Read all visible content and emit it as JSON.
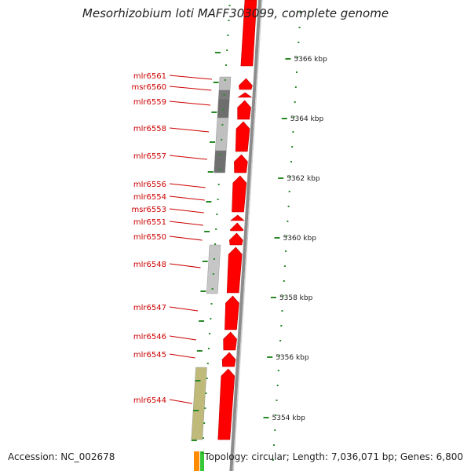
{
  "title": "Mesorhizobium loti MAFF303099, complete genome",
  "footer": {
    "accession": "Accession: NC_002678",
    "topology": "Topology: circular; Length: 7,036,071 bp; Genes: 6,800"
  },
  "colors": {
    "gene_arrow": "#ff0000",
    "label": "#cc0000",
    "tick": "#2a8a2a",
    "backbone": "#8c8c8c",
    "scale_text": "#222222"
  },
  "scale_marks": [
    {
      "label": "5366 kbp"
    },
    {
      "label": "5364 kbp"
    },
    {
      "label": "5362 kbp"
    },
    {
      "label": "5360 kbp"
    },
    {
      "label": "5358 kbp"
    },
    {
      "label": "5356 kbp"
    },
    {
      "label": "5354 kbp"
    }
  ],
  "genes": [
    {
      "label": "mlr6561"
    },
    {
      "label": "msr6560"
    },
    {
      "label": "mlr6559"
    },
    {
      "label": "mlr6558"
    },
    {
      "label": "mlr6557"
    },
    {
      "label": "mlr6556"
    },
    {
      "label": "mlr6554"
    },
    {
      "label": "msr6553"
    },
    {
      "label": "mlr6551"
    },
    {
      "label": "mlr6550"
    },
    {
      "label": "mlr6548"
    },
    {
      "label": "mlr6547"
    },
    {
      "label": "mlr6546"
    },
    {
      "label": "mlr6545"
    },
    {
      "label": "mlr6544"
    }
  ]
}
